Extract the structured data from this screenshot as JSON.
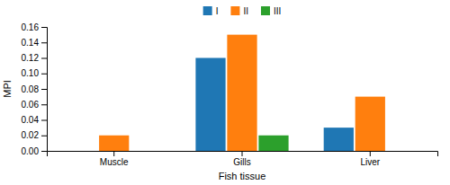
{
  "chart_data": {
    "type": "bar",
    "categories": [
      "Muscle",
      "Gills",
      "Liver"
    ],
    "series": [
      {
        "name": "I",
        "values": [
          0.0,
          0.12,
          0.03
        ]
      },
      {
        "name": "II",
        "values": [
          0.02,
          0.15,
          0.07
        ]
      },
      {
        "name": "III",
        "values": [
          0.0,
          0.02,
          0.0
        ]
      }
    ],
    "xlabel": "Fish tissue",
    "ylabel": "MPI",
    "ylim": [
      0.0,
      0.16
    ],
    "yticks": [
      {
        "value": 0.0,
        "label": "0.00"
      },
      {
        "value": 0.02,
        "label": "0.02"
      },
      {
        "value": 0.04,
        "label": "0.04"
      },
      {
        "value": 0.06,
        "label": "0.06"
      },
      {
        "value": 0.08,
        "label": "0.08"
      },
      {
        "value": 0.1,
        "label": "0.10"
      },
      {
        "value": 0.12,
        "label": "0.12"
      },
      {
        "value": 0.14,
        "label": "0.14"
      },
      {
        "value": 0.16,
        "label": "0.16"
      }
    ],
    "legend": "top",
    "grid": false
  }
}
